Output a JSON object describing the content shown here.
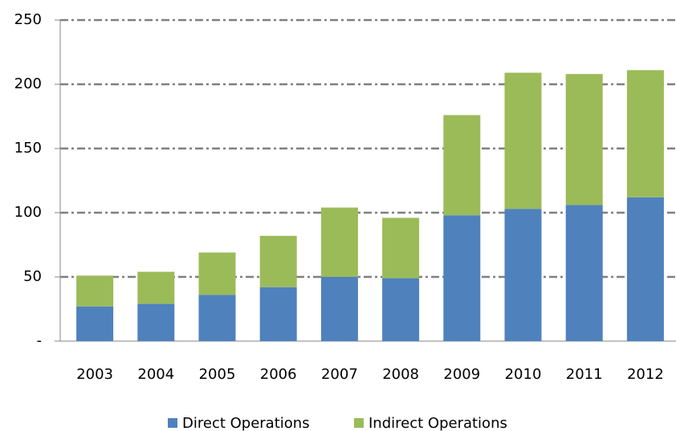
{
  "chart_data": {
    "type": "bar",
    "stacked": true,
    "categories": [
      "2003",
      "2004",
      "2005",
      "2006",
      "2007",
      "2008",
      "2009",
      "2010",
      "2011",
      "2012"
    ],
    "series": [
      {
        "name": "Direct Operations",
        "color": "#4f81bd",
        "values": [
          27,
          29,
          36,
          42,
          50,
          49,
          98,
          103,
          106,
          112
        ]
      },
      {
        "name": "Indirect Operations",
        "color": "#9bbb59",
        "values": [
          24,
          25,
          33,
          40,
          54,
          47,
          78,
          106,
          102,
          99
        ]
      }
    ],
    "ylim": [
      0,
      250
    ],
    "yticks": [
      {
        "value": 0,
        "label": "-"
      },
      50,
      100,
      150,
      200,
      250
    ],
    "grid": true,
    "legend": "bottom"
  }
}
